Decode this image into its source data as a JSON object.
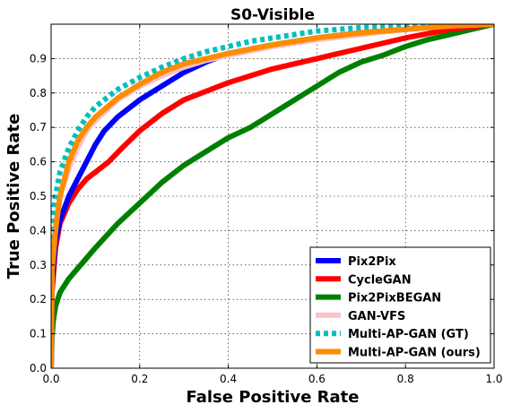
{
  "chart_data": {
    "type": "line",
    "title": "S0-Visible",
    "xlabel": "False Positive Rate",
    "ylabel": "True Positive Rate",
    "xlim": [
      0.0,
      1.0
    ],
    "ylim": [
      0.0,
      1.0
    ],
    "xticks": [
      "0.0",
      "0.2",
      "0.4",
      "0.6",
      "0.8",
      "1.0"
    ],
    "yticks": [
      "0.0",
      "0.1",
      "0.2",
      "0.3",
      "0.4",
      "0.5",
      "0.6",
      "0.7",
      "0.8",
      "0.9"
    ],
    "grid": true,
    "legend_position": "lower-right",
    "series": [
      {
        "name": "Pix2Pix",
        "color": "#0000ff",
        "dashed": false,
        "points": [
          [
            0,
            0
          ],
          [
            0.002,
            0.25
          ],
          [
            0.01,
            0.37
          ],
          [
            0.02,
            0.43
          ],
          [
            0.04,
            0.5
          ],
          [
            0.06,
            0.55
          ],
          [
            0.08,
            0.6
          ],
          [
            0.1,
            0.65
          ],
          [
            0.12,
            0.69
          ],
          [
            0.15,
            0.73
          ],
          [
            0.2,
            0.78
          ],
          [
            0.25,
            0.82
          ],
          [
            0.3,
            0.86
          ],
          [
            0.35,
            0.89
          ],
          [
            0.4,
            0.915
          ],
          [
            0.5,
            0.94
          ],
          [
            0.6,
            0.96
          ],
          [
            0.7,
            0.975
          ],
          [
            0.8,
            0.985
          ],
          [
            0.9,
            0.995
          ],
          [
            1.0,
            1.0
          ]
        ]
      },
      {
        "name": "CycleGAN",
        "color": "#ff0000",
        "dashed": false,
        "points": [
          [
            0,
            0
          ],
          [
            0.002,
            0.22
          ],
          [
            0.01,
            0.35
          ],
          [
            0.02,
            0.42
          ],
          [
            0.04,
            0.48
          ],
          [
            0.06,
            0.52
          ],
          [
            0.08,
            0.55
          ],
          [
            0.1,
            0.57
          ],
          [
            0.13,
            0.6
          ],
          [
            0.16,
            0.64
          ],
          [
            0.2,
            0.69
          ],
          [
            0.25,
            0.74
          ],
          [
            0.3,
            0.78
          ],
          [
            0.35,
            0.805
          ],
          [
            0.4,
            0.83
          ],
          [
            0.5,
            0.87
          ],
          [
            0.6,
            0.9
          ],
          [
            0.7,
            0.93
          ],
          [
            0.8,
            0.96
          ],
          [
            0.9,
            0.985
          ],
          [
            1.0,
            1.0
          ]
        ]
      },
      {
        "name": "Pix2PixBEGAN",
        "color": "#008000",
        "dashed": false,
        "points": [
          [
            0,
            0
          ],
          [
            0.002,
            0.09
          ],
          [
            0.005,
            0.14
          ],
          [
            0.01,
            0.18
          ],
          [
            0.02,
            0.22
          ],
          [
            0.04,
            0.26
          ],
          [
            0.06,
            0.29
          ],
          [
            0.08,
            0.32
          ],
          [
            0.1,
            0.35
          ],
          [
            0.15,
            0.42
          ],
          [
            0.2,
            0.48
          ],
          [
            0.25,
            0.54
          ],
          [
            0.3,
            0.59
          ],
          [
            0.35,
            0.63
          ],
          [
            0.4,
            0.67
          ],
          [
            0.45,
            0.7
          ],
          [
            0.5,
            0.74
          ],
          [
            0.55,
            0.78
          ],
          [
            0.6,
            0.82
          ],
          [
            0.65,
            0.86
          ],
          [
            0.7,
            0.89
          ],
          [
            0.75,
            0.91
          ],
          [
            0.8,
            0.935
          ],
          [
            0.85,
            0.955
          ],
          [
            0.9,
            0.97
          ],
          [
            0.95,
            0.985
          ],
          [
            1.0,
            1.0
          ]
        ]
      },
      {
        "name": "GAN-VFS",
        "color": "#ffc0cb",
        "dashed": false,
        "points": [
          [
            0,
            0
          ],
          [
            0.002,
            0.3
          ],
          [
            0.01,
            0.42
          ],
          [
            0.02,
            0.5
          ],
          [
            0.04,
            0.58
          ],
          [
            0.06,
            0.64
          ],
          [
            0.08,
            0.69
          ],
          [
            0.1,
            0.72
          ],
          [
            0.15,
            0.78
          ],
          [
            0.2,
            0.82
          ],
          [
            0.25,
            0.85
          ],
          [
            0.3,
            0.875
          ],
          [
            0.35,
            0.895
          ],
          [
            0.4,
            0.91
          ],
          [
            0.5,
            0.935
          ],
          [
            0.6,
            0.955
          ],
          [
            0.7,
            0.97
          ],
          [
            0.8,
            0.985
          ],
          [
            0.9,
            0.995
          ],
          [
            1.0,
            1.0
          ]
        ]
      },
      {
        "name": "Multi-AP-GAN (GT)",
        "color": "#00bfbf",
        "dashed": true,
        "points": [
          [
            0,
            0
          ],
          [
            0.001,
            0.4
          ],
          [
            0.005,
            0.45
          ],
          [
            0.01,
            0.5
          ],
          [
            0.02,
            0.57
          ],
          [
            0.04,
            0.64
          ],
          [
            0.06,
            0.69
          ],
          [
            0.08,
            0.73
          ],
          [
            0.1,
            0.76
          ],
          [
            0.15,
            0.81
          ],
          [
            0.2,
            0.845
          ],
          [
            0.25,
            0.875
          ],
          [
            0.3,
            0.9
          ],
          [
            0.35,
            0.92
          ],
          [
            0.4,
            0.935
          ],
          [
            0.45,
            0.95
          ],
          [
            0.5,
            0.96
          ],
          [
            0.55,
            0.97
          ],
          [
            0.6,
            0.98
          ],
          [
            0.7,
            0.99
          ],
          [
            0.8,
            0.995
          ],
          [
            0.9,
            1.0
          ],
          [
            1.0,
            1.0
          ]
        ]
      },
      {
        "name": "Multi-AP-GAN (ours)",
        "color": "#ff8c00",
        "dashed": false,
        "points": [
          [
            0,
            0
          ],
          [
            0.002,
            0.28
          ],
          [
            0.01,
            0.4
          ],
          [
            0.02,
            0.5
          ],
          [
            0.04,
            0.6
          ],
          [
            0.06,
            0.66
          ],
          [
            0.08,
            0.7
          ],
          [
            0.1,
            0.73
          ],
          [
            0.15,
            0.785
          ],
          [
            0.2,
            0.825
          ],
          [
            0.25,
            0.86
          ],
          [
            0.3,
            0.885
          ],
          [
            0.35,
            0.9
          ],
          [
            0.4,
            0.915
          ],
          [
            0.5,
            0.94
          ],
          [
            0.6,
            0.96
          ],
          [
            0.7,
            0.975
          ],
          [
            0.8,
            0.985
          ],
          [
            0.9,
            0.995
          ],
          [
            1.0,
            1.0
          ]
        ]
      }
    ]
  }
}
